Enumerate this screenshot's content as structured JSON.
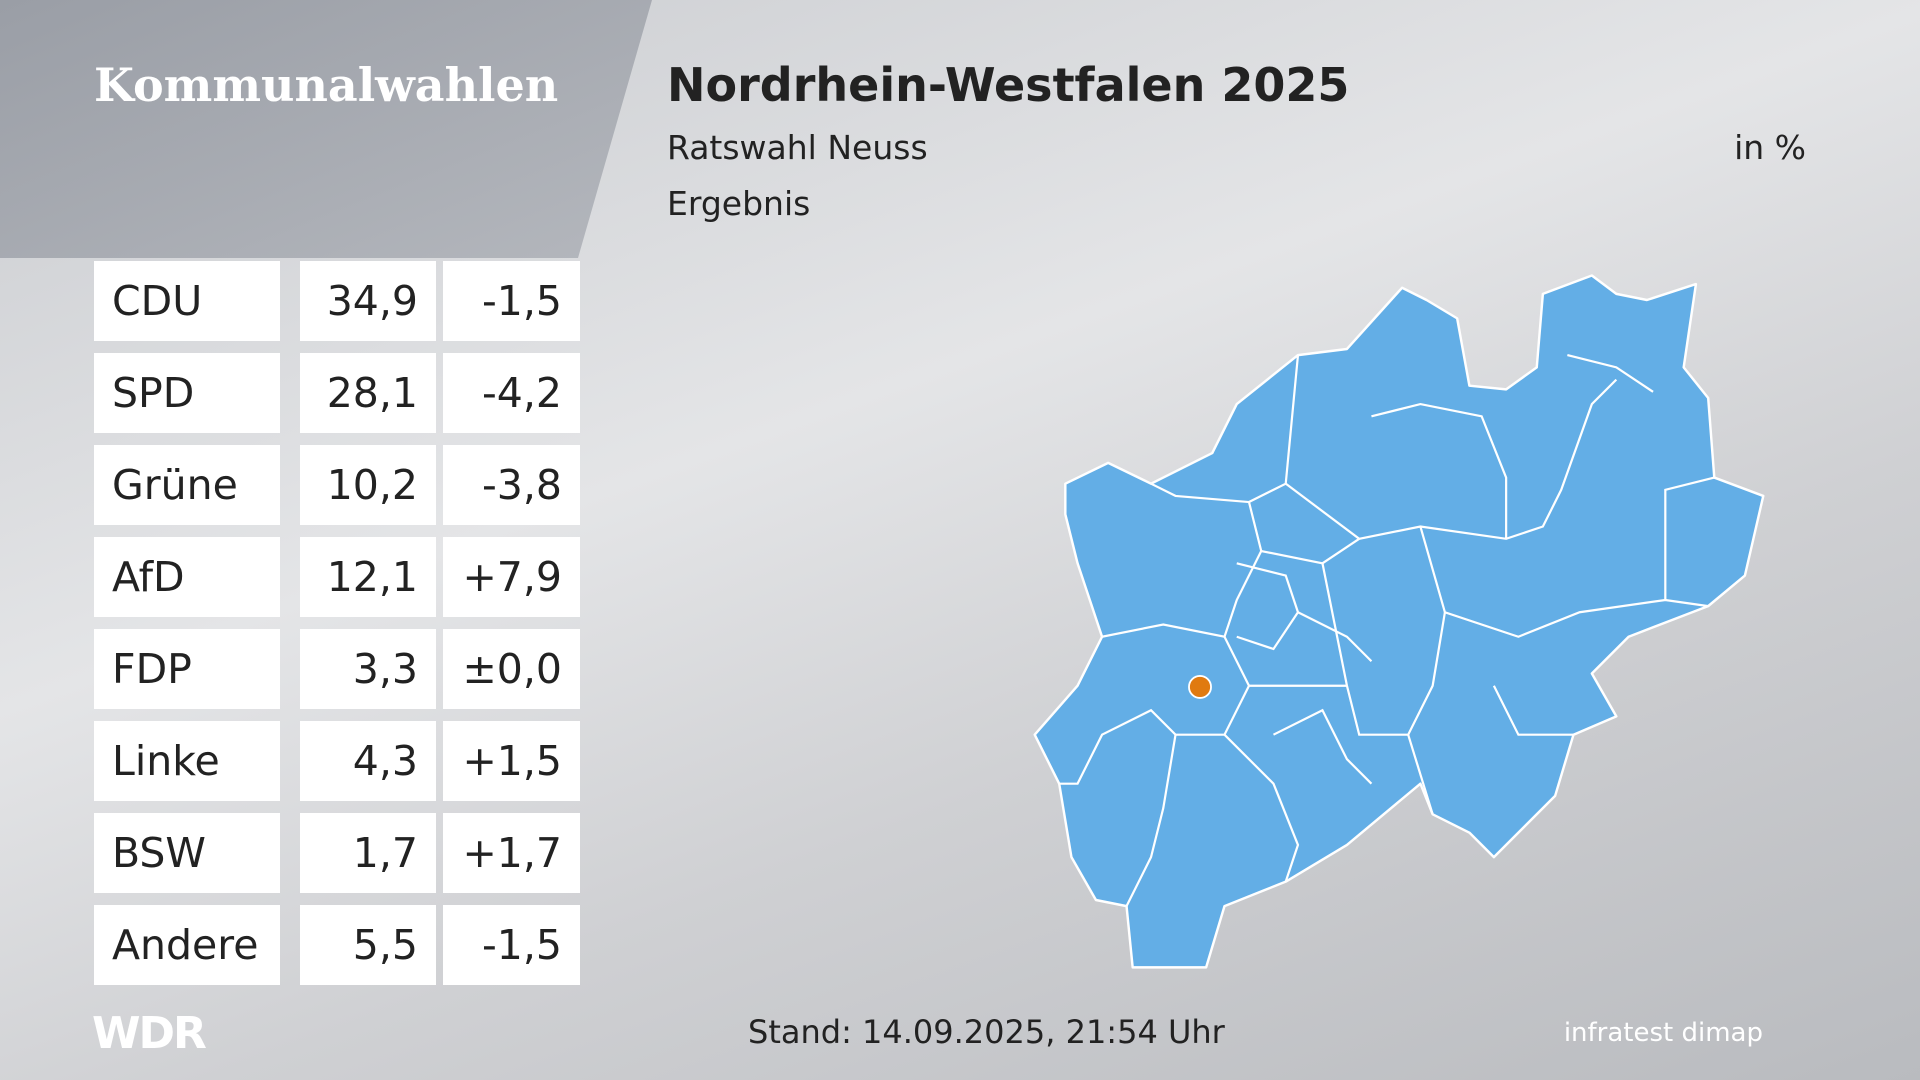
{
  "header": {
    "brand": "Kommunalwahlen",
    "title": "Nordrhein-Westfalen 2025",
    "subtitle": "Ratswahl Neuss",
    "unit": "in %",
    "caption": "Ergebnis"
  },
  "table": {
    "rows": [
      [
        "CDU",
        "34,9",
        "-1,5"
      ],
      [
        "SPD",
        "28,1",
        "-4,2"
      ],
      [
        "Grüne",
        "10,2",
        "-3,8"
      ],
      [
        "AfD",
        "12,1",
        "+7,9"
      ],
      [
        "FDP",
        "3,3",
        "±0,0"
      ],
      [
        "Linke",
        "4,3",
        "+1,5"
      ],
      [
        "BSW",
        "1,7",
        "+1,7"
      ],
      [
        "Andere",
        "5,5",
        "-1,5"
      ]
    ]
  },
  "footer": {
    "logo": "WDR",
    "timestamp": "Stand: 14.09.2025, 21:54 Uhr",
    "source": "infratest dimap"
  }
}
